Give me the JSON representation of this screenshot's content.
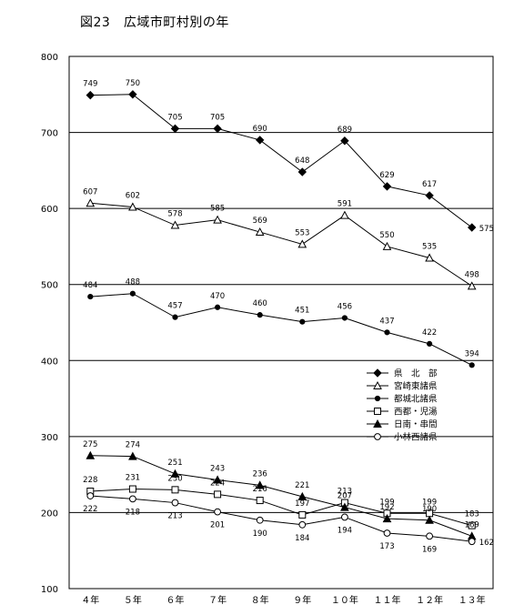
{
  "chart_data": {
    "type": "line",
    "title": "図23　広域市町村別の年",
    "categories": [
      "４年",
      "５年",
      "６年",
      "７年",
      "８年",
      "９年",
      "１０年",
      "１１年",
      "１２年",
      "１３年"
    ],
    "ylim": [
      100,
      800
    ],
    "yticks": [
      100,
      200,
      300,
      400,
      500,
      600,
      700,
      800
    ],
    "grid_lines": [
      200,
      300,
      400,
      500,
      600,
      700
    ],
    "legend_position": "right",
    "series": [
      {
        "name": "県　北　部",
        "marker": "diamond-filled",
        "values": [
          749,
          750,
          705,
          705,
          690,
          648,
          689,
          629,
          617,
          575
        ]
      },
      {
        "name": "宮崎東諸県",
        "marker": "triangle-open",
        "values": [
          607,
          602,
          578,
          585,
          569,
          553,
          591,
          550,
          535,
          498
        ]
      },
      {
        "name": "都城北諸県",
        "marker": "circle-filled",
        "values": [
          484,
          488,
          457,
          470,
          460,
          451,
          456,
          437,
          422,
          394
        ]
      },
      {
        "name": "西都・児湯",
        "marker": "square-open",
        "values": [
          228,
          231,
          230,
          224,
          216,
          197,
          213,
          199,
          199,
          183
        ]
      },
      {
        "name": "日南・串間",
        "marker": "triangle-filled",
        "values": [
          275,
          274,
          251,
          243,
          236,
          221,
          207,
          192,
          190,
          169
        ]
      },
      {
        "name": "小林西諸県",
        "marker": "circle-open",
        "values": [
          222,
          218,
          213,
          201,
          190,
          184,
          194,
          173,
          169,
          162
        ]
      }
    ]
  }
}
